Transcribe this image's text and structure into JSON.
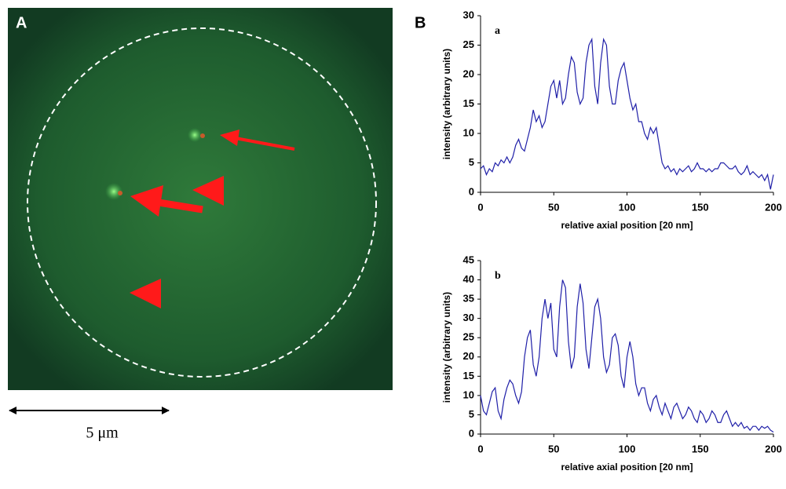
{
  "figure": {
    "panel_a_label": "A",
    "panel_b_label": "B",
    "scale_bar": "5 μm"
  },
  "chart_data": [
    {
      "type": "line",
      "label": "a",
      "xlabel": "relative axial position [20 nm]",
      "ylabel": "intensity (arbitrary units)",
      "x": [
        0,
        2,
        4,
        6,
        8,
        10,
        12,
        14,
        16,
        18,
        20,
        22,
        24,
        26,
        28,
        30,
        32,
        34,
        36,
        38,
        40,
        42,
        44,
        46,
        48,
        50,
        52,
        54,
        56,
        58,
        60,
        62,
        64,
        66,
        68,
        70,
        72,
        74,
        76,
        78,
        80,
        82,
        84,
        86,
        88,
        90,
        92,
        94,
        96,
        98,
        100,
        102,
        104,
        106,
        108,
        110,
        112,
        114,
        116,
        118,
        120,
        122,
        124,
        126,
        128,
        130,
        132,
        134,
        136,
        138,
        140,
        142,
        144,
        146,
        148,
        150,
        152,
        154,
        156,
        158,
        160,
        162,
        164,
        166,
        168,
        170,
        172,
        174,
        176,
        178,
        180,
        182,
        184,
        186,
        188,
        190,
        192,
        194,
        196,
        198,
        200
      ],
      "series": [
        {
          "color": "#1f1fa8",
          "values": [
            4,
            4.5,
            3,
            4,
            3.5,
            5,
            4.5,
            5.5,
            5,
            6,
            5,
            6,
            8,
            9,
            7.5,
            7,
            9,
            11,
            14,
            12,
            13,
            11,
            12,
            15,
            18,
            19,
            16,
            19,
            15,
            16,
            20,
            23,
            22,
            17,
            15,
            16,
            22,
            25,
            26,
            18,
            15,
            22,
            26,
            25,
            18,
            15,
            15,
            19,
            21,
            22,
            19,
            16,
            14,
            15,
            12,
            12,
            10,
            9,
            11,
            10,
            11,
            8,
            5,
            4,
            4.5,
            3.5,
            4,
            3,
            4,
            3.5,
            4,
            4.5,
            3.5,
            4,
            5,
            4,
            4,
            3.5,
            4,
            3.5,
            4,
            4,
            5,
            5,
            4.5,
            4,
            4,
            4.5,
            3.5,
            3,
            3.5,
            4.5,
            3,
            3.5,
            3,
            2.5,
            3,
            2,
            3,
            0.5,
            3
          ]
        }
      ],
      "xlim": [
        0,
        200
      ],
      "ylim": [
        0,
        30
      ],
      "xticks": [
        0,
        50,
        100,
        150,
        200
      ],
      "yticks": [
        0,
        5,
        10,
        15,
        20,
        25,
        30
      ]
    },
    {
      "type": "line",
      "label": "b",
      "xlabel": "relative axial position [20 nm]",
      "ylabel": "intensity (arbitrary units)",
      "x": [
        0,
        2,
        4,
        6,
        8,
        10,
        12,
        14,
        16,
        18,
        20,
        22,
        24,
        26,
        28,
        30,
        32,
        34,
        36,
        38,
        40,
        42,
        44,
        46,
        48,
        50,
        52,
        54,
        56,
        58,
        60,
        62,
        64,
        66,
        68,
        70,
        72,
        74,
        76,
        78,
        80,
        82,
        84,
        86,
        88,
        90,
        92,
        94,
        96,
        98,
        100,
        102,
        104,
        106,
        108,
        110,
        112,
        114,
        116,
        118,
        120,
        122,
        124,
        126,
        128,
        130,
        132,
        134,
        136,
        138,
        140,
        142,
        144,
        146,
        148,
        150,
        152,
        154,
        156,
        158,
        160,
        162,
        164,
        166,
        168,
        170,
        172,
        174,
        176,
        178,
        180,
        182,
        184,
        186,
        188,
        190,
        192,
        194,
        196,
        198,
        200
      ],
      "series": [
        {
          "color": "#1f1fa8",
          "values": [
            10,
            6,
            5,
            8,
            11,
            12,
            6,
            4,
            9,
            12,
            14,
            13,
            10,
            8,
            11,
            20,
            25,
            27,
            18,
            15,
            20,
            30,
            35,
            30,
            34,
            22,
            20,
            33,
            40,
            38,
            24,
            17,
            20,
            33,
            39,
            34,
            22,
            17,
            25,
            33,
            35,
            30,
            20,
            16,
            18,
            25,
            26,
            23,
            15,
            12,
            20,
            24,
            20,
            13,
            10,
            12,
            12,
            8,
            6,
            9,
            10,
            7,
            5,
            8,
            6,
            4,
            7,
            8,
            6,
            4,
            5,
            7,
            6,
            4,
            3,
            6,
            5,
            3,
            4,
            6,
            5,
            3,
            3,
            5,
            6,
            4,
            2,
            3,
            2,
            3,
            1.5,
            2,
            1,
            2,
            2,
            1,
            2,
            1.5,
            2,
            1,
            0.5
          ]
        }
      ],
      "xlim": [
        0,
        200
      ],
      "ylim": [
        0,
        45
      ],
      "xticks": [
        0,
        50,
        100,
        150,
        200
      ],
      "yticks": [
        0,
        5,
        10,
        15,
        20,
        25,
        30,
        35,
        40,
        45
      ]
    }
  ]
}
